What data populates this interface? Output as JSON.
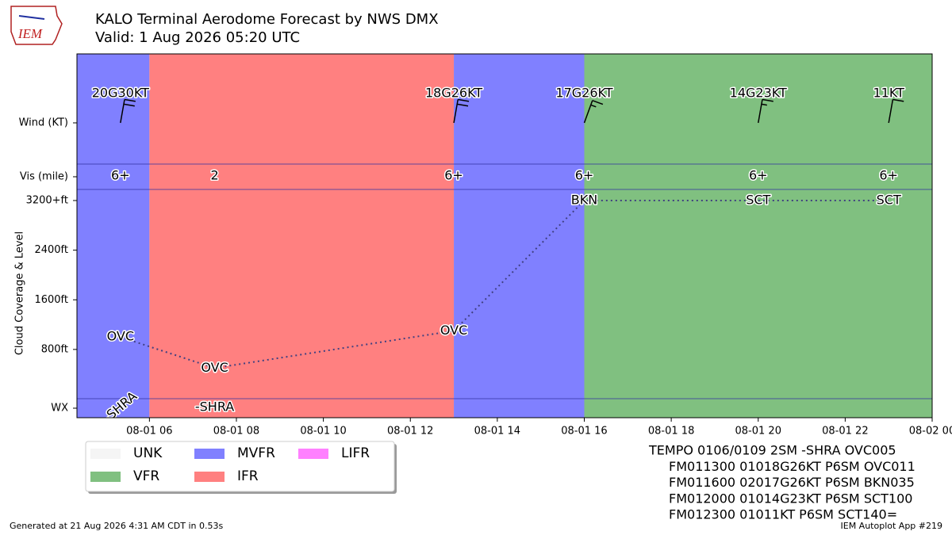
{
  "chart_data": {
    "type": "taf",
    "logo": "IEM",
    "title": "KALO Terminal Aerodome Forecast by NWS DMX",
    "subtitle": "Valid: 1 Aug 2026 05:20 UTC",
    "ylabel": "Cloud Coverage & Level",
    "row_labels": {
      "wind": "Wind (KT)",
      "vis": "Vis (mile)",
      "wx": "WX"
    },
    "xlim": [
      "08-01 04:20",
      "08-02 00"
    ],
    "xticks": [
      "08-01 06",
      "08-01 08",
      "08-01 10",
      "08-01 12",
      "08-01 14",
      "08-01 16",
      "08-01 18",
      "08-01 20",
      "08-01 22",
      "08-02 00"
    ],
    "ylim": [
      0,
      3200
    ],
    "yticks": [
      {
        "value": 800,
        "label": "800ft"
      },
      {
        "value": 1600,
        "label": "1600ft"
      },
      {
        "value": 2400,
        "label": "2400ft"
      },
      {
        "value": 3200,
        "label": "3200+ft"
      }
    ],
    "category_colors": {
      "UNK": "#f5f5f5",
      "VFR": "#80c080",
      "MVFR": "#8080ff",
      "IFR": "#ff8080",
      "LIFR": "#ff80ff"
    },
    "legend": [
      "UNK",
      "VFR",
      "MVFR",
      "IFR",
      "LIFR"
    ],
    "segments": [
      {
        "category": "MVFR",
        "end": "08-01 06"
      },
      {
        "category": "IFR",
        "end": "08-01 13"
      },
      {
        "category": "MVFR",
        "end": "08-01 16"
      },
      {
        "category": "VFR",
        "end": "08-02 00"
      }
    ],
    "wind": {
      "x": [
        "08-01 05:20",
        "08-01 13",
        "08-01 16",
        "08-01 20",
        "08-01 23"
      ],
      "dir": [
        10,
        10,
        20,
        10,
        10
      ],
      "speed": [
        20,
        18,
        17,
        14,
        11
      ],
      "value_labels": [
        "20G30KT",
        "18G26KT",
        "17G26KT",
        "14G23KT",
        "11KT"
      ]
    },
    "vis": {
      "x": [
        "08-01 05:20",
        "08-01 07:30",
        "08-01 13",
        "08-01 16",
        "08-01 20",
        "08-01 23"
      ],
      "labels": [
        "6+",
        "2",
        "6+",
        "6+",
        "6+",
        "6+"
      ]
    },
    "clouds": {
      "x": [
        "08-01 05:20",
        "08-01 07:30",
        "08-01 13",
        "08-01 16",
        "08-01 20",
        "08-01 23"
      ],
      "values": [
        1000,
        500,
        1100,
        3200,
        3200,
        3200
      ],
      "labels": [
        "OVC",
        "OVC",
        "OVC",
        "BKN",
        "SCT",
        "SCT"
      ]
    },
    "wx": {
      "x": [
        "08-01 05:20",
        "08-01 07:30"
      ],
      "labels": [
        "-SHRA",
        "-SHRA"
      ]
    },
    "taf_text": [
      "TEMPO 0106/0109 2SM -SHRA OVC005",
      "FM011300 01018G26KT P6SM OVC011",
      "FM011600 02017G26KT P6SM BKN035",
      "FM012000 01014G23KT P6SM SCT100",
      "FM012300 01011KT P6SM SCT140="
    ],
    "footer_left": "Generated at 21 Aug 2026 4:31 AM CDT in 0.53s",
    "footer_right": "IEM Autoplot App #219"
  }
}
